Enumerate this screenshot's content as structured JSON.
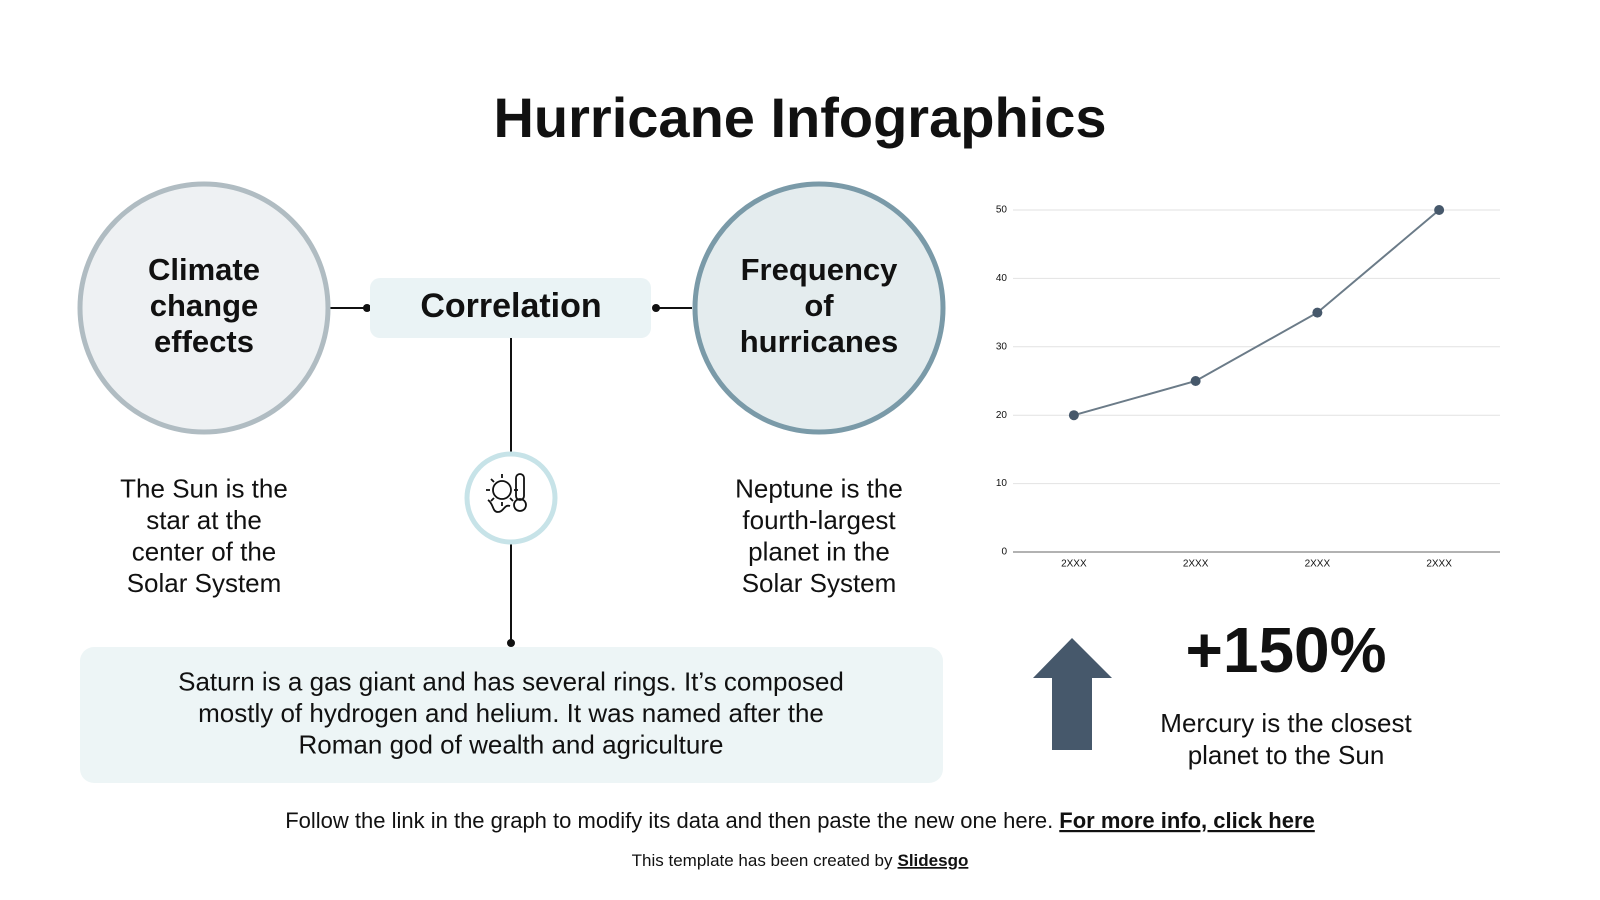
{
  "title": "Hurricane Infographics",
  "nodes": [
    {
      "label": [
        "Climate",
        "change",
        "effects"
      ]
    },
    {
      "label": [
        "Correlation"
      ]
    },
    {
      "label": [
        "Frequency",
        "of",
        "hurricanes"
      ]
    }
  ],
  "descriptions": [
    [
      "The Sun is the",
      "star at the",
      "center of the",
      "Solar System"
    ],
    [
      "Neptune is the",
      "fourth-largest",
      "planet in the",
      "Solar System"
    ]
  ],
  "summary": [
    "Saturn is a gas giant and has several rings. It’s composed",
    "mostly of hydrogen and helium. It was named after the",
    "Roman god of wealth and agriculture"
  ],
  "stat": {
    "value": "+150%",
    "caption": [
      "Mercury is the closest",
      "planet to the Sun"
    ]
  },
  "footer": {
    "text": "Follow the link in the graph to modify its data and then paste the new one here.",
    "link": "For more info, click here"
  },
  "credit": {
    "text": "This template has been created by",
    "link": "Slidesgo"
  },
  "chart_data": {
    "type": "line",
    "categories": [
      "2XXX",
      "2XXX",
      "2XXX",
      "2XXX"
    ],
    "values": [
      20,
      25,
      35,
      50
    ],
    "color": "#6b7b88",
    "marker_color": "#46586b",
    "ylim": [
      0,
      50
    ],
    "yticks": [
      0,
      10,
      20,
      30,
      40,
      50
    ],
    "grid": true
  }
}
